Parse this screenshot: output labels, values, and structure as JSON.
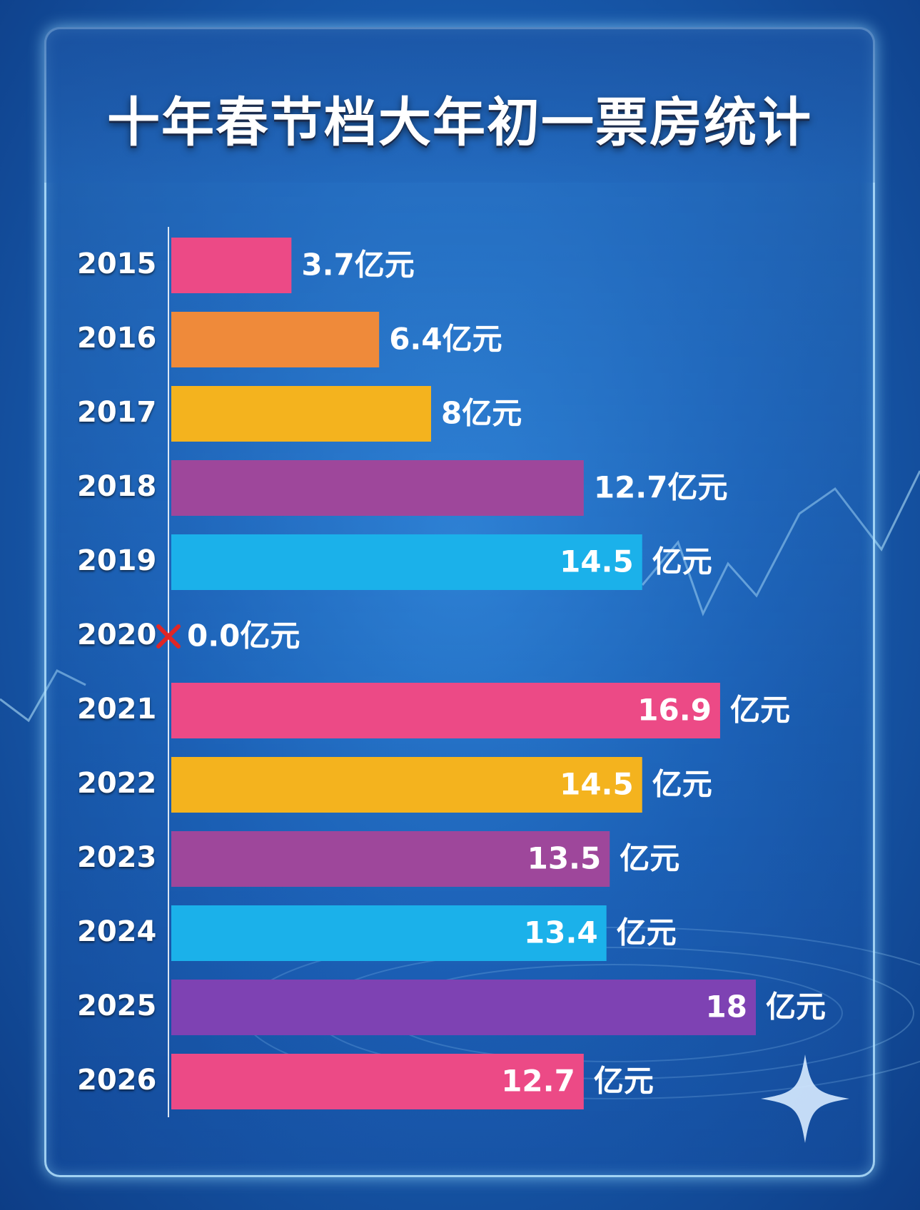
{
  "title": "十年春节档大年初一票房统计",
  "chart_data": {
    "type": "bar",
    "orientation": "horizontal",
    "title": "十年春节档大年初一票房统计",
    "categories": [
      "2015",
      "2016",
      "2017",
      "2018",
      "2019",
      "2020",
      "2021",
      "2022",
      "2023",
      "2024",
      "2025",
      "2026"
    ],
    "values": [
      3.7,
      6.4,
      8,
      12.7,
      14.5,
      0.0,
      16.9,
      14.5,
      13.5,
      13.4,
      18,
      12.7
    ],
    "value_labels": [
      "3.7",
      "6.4",
      "8",
      "12.7",
      "14.5",
      "0.0",
      "16.9",
      "14.5",
      "13.5",
      "13.4",
      "18",
      "12.7"
    ],
    "unit": "亿元",
    "label_inside": [
      false,
      false,
      false,
      false,
      true,
      false,
      true,
      true,
      true,
      true,
      true,
      true
    ],
    "bar_colors": [
      "#ec4a86",
      "#ef8a3a",
      "#f4b31e",
      "#9e479b",
      "#1bb1ea",
      "#ec4a86",
      "#ec4a86",
      "#f4b31e",
      "#9e479b",
      "#1bb1ea",
      "#7e42b3",
      "#ec4a86"
    ],
    "zero_marker": "cross-mark",
    "zero_marker_color": "#e02626",
    "xlim": [
      0,
      18
    ],
    "grid": false,
    "legend": "none"
  }
}
